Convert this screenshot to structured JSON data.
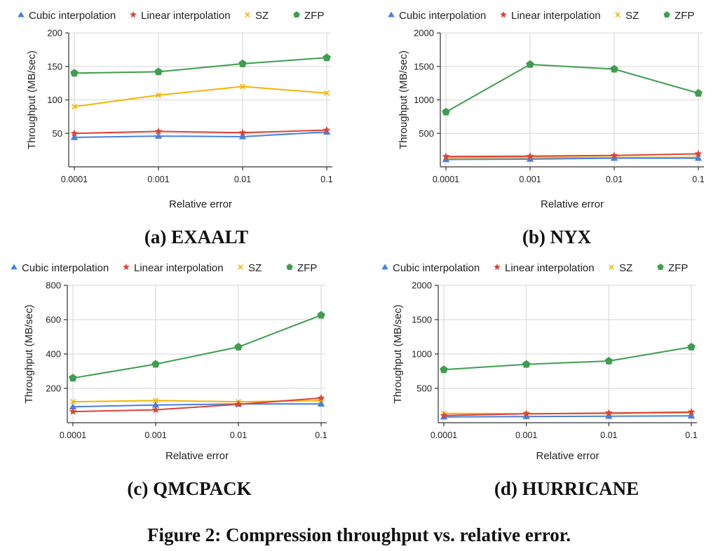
{
  "figure": {
    "caption": "Figure 2: Compression throughput vs. relative error."
  },
  "legend": {
    "items": [
      {
        "name": "Cubic interpolation",
        "marker": "triangle",
        "color": "#4a7fde"
      },
      {
        "name": "Linear interpolation",
        "marker": "star",
        "color": "#db4437"
      },
      {
        "name": "SZ",
        "marker": "x",
        "color": "#f4b400"
      },
      {
        "name": "ZFP",
        "marker": "pentagon",
        "color": "#3f9d50"
      }
    ]
  },
  "chart_data": [
    {
      "type": "line",
      "title": "(a) EXAALT",
      "xlabel": "Relative error",
      "ylabel": "Throughput (MB/sec)",
      "categories": [
        "0.0001",
        "0.001",
        "0.01",
        "0.1"
      ],
      "ylim": [
        0,
        200
      ],
      "yticks": [
        50,
        100,
        150,
        200
      ],
      "grid": true,
      "legend_position": "top",
      "series": [
        {
          "name": "Cubic interpolation",
          "values": [
            44,
            46,
            45,
            52
          ]
        },
        {
          "name": "Linear interpolation",
          "values": [
            50,
            53,
            51,
            55
          ]
        },
        {
          "name": "SZ",
          "values": [
            90,
            107,
            120,
            110
          ]
        },
        {
          "name": "ZFP",
          "values": [
            140,
            142,
            154,
            163
          ]
        }
      ]
    },
    {
      "type": "line",
      "title": "(b) NYX",
      "xlabel": "Relative error",
      "ylabel": "Throughput (MB/sec)",
      "categories": [
        "0.0001",
        "0.001",
        "0.01",
        "0.1"
      ],
      "ylim": [
        0,
        2000
      ],
      "yticks": [
        500,
        1000,
        1500,
        2000
      ],
      "grid": true,
      "legend_position": "top",
      "series": [
        {
          "name": "Cubic interpolation",
          "values": [
            110,
            115,
            130,
            130
          ]
        },
        {
          "name": "Linear interpolation",
          "values": [
            155,
            160,
            170,
            195
          ]
        },
        {
          "name": "SZ",
          "values": [
            135,
            140,
            140,
            140
          ]
        },
        {
          "name": "ZFP",
          "values": [
            820,
            1530,
            1460,
            1100
          ]
        }
      ]
    },
    {
      "type": "line",
      "title": "(c) QMCPACK",
      "xlabel": "Relative error",
      "ylabel": "Throughput (MB/sec)",
      "categories": [
        "0.0001",
        "0.001",
        "0.01",
        "0.1"
      ],
      "ylim": [
        0,
        800
      ],
      "yticks": [
        200,
        400,
        600,
        800
      ],
      "grid": true,
      "legend_position": "top",
      "series": [
        {
          "name": "Cubic interpolation",
          "values": [
            93,
            103,
            109,
            109
          ]
        },
        {
          "name": "Linear interpolation",
          "values": [
            65,
            75,
            107,
            144
          ]
        },
        {
          "name": "SZ",
          "values": [
            122,
            129,
            122,
            129
          ]
        },
        {
          "name": "ZFP",
          "values": [
            260,
            341,
            441,
            626
          ]
        }
      ]
    },
    {
      "type": "line",
      "title": "(d) HURRICANE",
      "xlabel": "Relative error",
      "ylabel": "Throughput (MB/sec)",
      "categories": [
        "0.0001",
        "0.001",
        "0.01",
        "0.1"
      ],
      "ylim": [
        0,
        2000
      ],
      "yticks": [
        500,
        1000,
        1500,
        2000
      ],
      "grid": true,
      "legend_position": "top",
      "series": [
        {
          "name": "Cubic interpolation",
          "values": [
            85,
            90,
            95,
            100
          ]
        },
        {
          "name": "Linear interpolation",
          "values": [
            105,
            130,
            140,
            155
          ]
        },
        {
          "name": "SZ",
          "values": [
            135,
            130,
            135,
            145
          ]
        },
        {
          "name": "ZFP",
          "values": [
            772,
            850,
            898,
            1102
          ]
        }
      ]
    }
  ]
}
